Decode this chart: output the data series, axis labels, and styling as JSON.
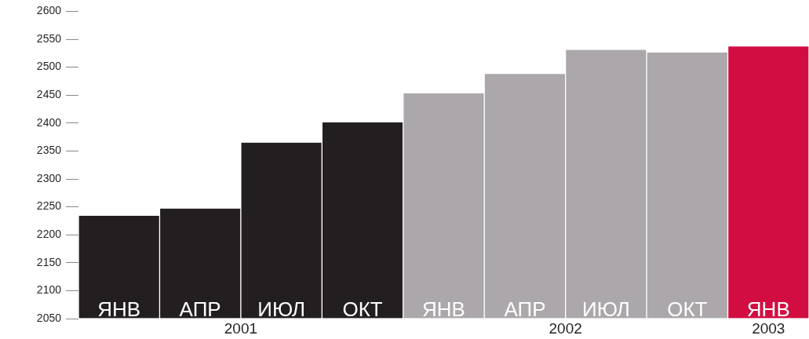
{
  "chart_data": {
    "type": "bar",
    "categories": [
      "ЯНВ",
      "АПР",
      "ИЮЛ",
      "ОКТ",
      "ЯНВ",
      "АПР",
      "ИЮЛ",
      "ОКТ",
      "ЯНВ"
    ],
    "values": [
      2234,
      2247,
      2365,
      2401,
      2453,
      2488,
      2531,
      2526,
      2537
    ],
    "colors": [
      "#231f20",
      "#231f20",
      "#231f20",
      "#231f20",
      "#aba7aa",
      "#aba7aa",
      "#aba7aa",
      "#aba7aa",
      "#d20d42"
    ],
    "annotations": [
      "2001",
      "2002",
      "2003"
    ],
    "ylim": [
      2050,
      2600
    ],
    "yticks": [
      2050,
      2100,
      2150,
      2200,
      2250,
      2300,
      2350,
      2400,
      2450,
      2500,
      2550,
      2600
    ],
    "grid": false
  }
}
